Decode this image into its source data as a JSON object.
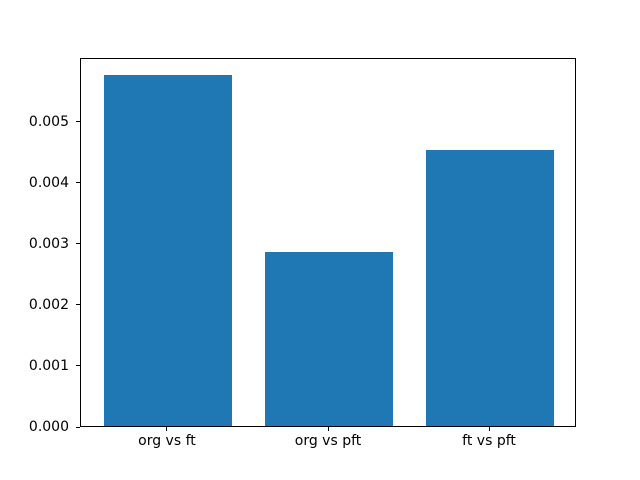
{
  "figure": {
    "background": "#ffffff",
    "text_color": "#000000"
  },
  "chart_data": {
    "type": "bar",
    "title": "",
    "xlabel": "",
    "ylabel": "",
    "categories": [
      "org vs ft",
      "org vs pft",
      "ft vs pft"
    ],
    "values": [
      0.00575,
      0.00285,
      0.00452
    ],
    "bar_color": "#1f77b4",
    "bar_width_units": 0.8,
    "xlim": [
      -0.54,
      2.54
    ],
    "ylim": [
      0,
      0.00604
    ],
    "yticks": [
      0.0,
      0.001,
      0.002,
      0.003,
      0.004,
      0.005
    ],
    "ytick_labels": [
      "0.000",
      "0.001",
      "0.002",
      "0.003",
      "0.004",
      "0.005"
    ],
    "grid": false,
    "legend": null
  }
}
